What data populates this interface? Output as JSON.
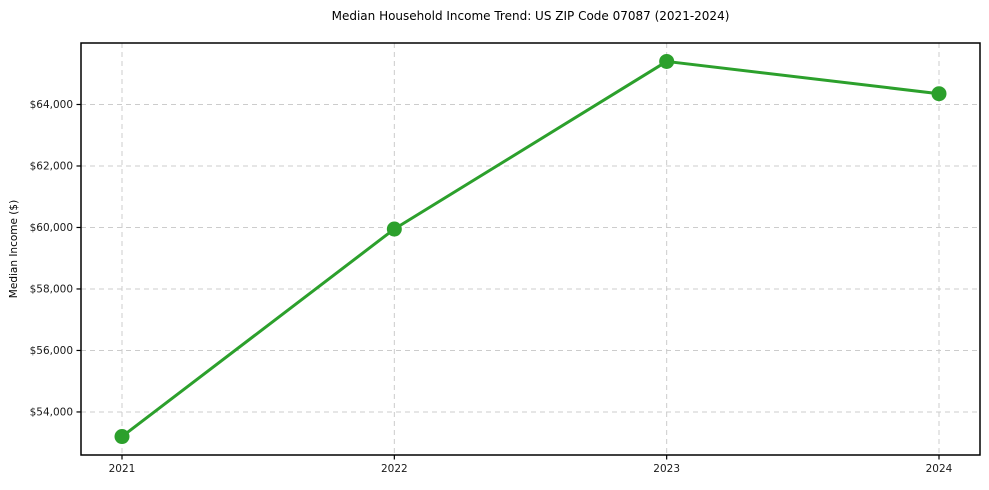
{
  "figure": {
    "background": "#ffffff"
  },
  "chart_data": {
    "type": "line",
    "title": "Median Household Income Trend: US ZIP Code 07087 (2021-2024)",
    "xlabel": "",
    "ylabel": "Median Income ($)",
    "categories": [
      "2021",
      "2022",
      "2023",
      "2024"
    ],
    "series": [
      {
        "values": [
          53200,
          59950,
          65400,
          64350
        ],
        "color": "#2ca02c",
        "marker": "circle"
      }
    ],
    "ylim": [
      52600,
      66000
    ],
    "yticks": {
      "values": [
        54000,
        56000,
        58000,
        60000,
        62000,
        64000
      ],
      "labels": [
        "$54,000",
        "$56,000",
        "$58,000",
        "$60,000",
        "$62,000",
        "$64,000"
      ]
    },
    "grid": {
      "show": true,
      "style": "dashed",
      "color": "#cccccc"
    },
    "legend": {
      "show": false
    },
    "axis_color": "#000000",
    "tick_label_color": "#1a1a1a"
  }
}
